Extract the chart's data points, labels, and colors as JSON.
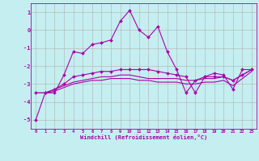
{
  "xlabel": "Windchill (Refroidissement éolien,°C)",
  "background_color": "#c5eef0",
  "grid_color": "#b0b0b0",
  "line_color": "#aa00aa",
  "x_hours": [
    0,
    1,
    2,
    3,
    4,
    5,
    6,
    7,
    8,
    9,
    10,
    11,
    12,
    13,
    14,
    15,
    16,
    17,
    18,
    19,
    20,
    21,
    22,
    23
  ],
  "series1": [
    -5.0,
    -3.5,
    -3.5,
    -2.5,
    -1.2,
    -1.3,
    -0.8,
    -0.7,
    -0.55,
    0.5,
    1.1,
    0.0,
    -0.4,
    0.2,
    -1.2,
    -2.2,
    -3.5,
    -2.8,
    -2.6,
    -2.4,
    -2.5,
    -3.3,
    -2.2,
    -2.2
  ],
  "series2": [
    -3.5,
    -3.5,
    -3.3,
    -3.0,
    -2.6,
    -2.5,
    -2.4,
    -2.3,
    -2.3,
    -2.2,
    -2.2,
    -2.2,
    -2.2,
    -2.3,
    -2.4,
    -2.5,
    -2.6,
    -3.5,
    -2.6,
    -2.6,
    -2.6,
    -2.8,
    -2.5,
    -2.2
  ],
  "series3": [
    -3.5,
    -3.5,
    -3.3,
    -3.1,
    -2.9,
    -2.8,
    -2.7,
    -2.6,
    -2.6,
    -2.5,
    -2.5,
    -2.6,
    -2.7,
    -2.7,
    -2.7,
    -2.7,
    -2.8,
    -2.8,
    -2.7,
    -2.7,
    -2.6,
    -2.8,
    -2.5,
    -2.2
  ],
  "series4": [
    -3.5,
    -3.5,
    -3.4,
    -3.2,
    -3.0,
    -2.9,
    -2.8,
    -2.8,
    -2.7,
    -2.7,
    -2.7,
    -2.8,
    -2.8,
    -2.9,
    -2.9,
    -2.9,
    -3.0,
    -3.0,
    -2.9,
    -2.9,
    -2.8,
    -3.1,
    -2.7,
    -2.3
  ],
  "ylim": [
    -5.5,
    1.5
  ],
  "yticks": [
    -5,
    -4,
    -3,
    -2,
    -1,
    0,
    1
  ],
  "marker": "D",
  "markersize": 2.0,
  "lw1": 0.8,
  "lw2": 0.8
}
